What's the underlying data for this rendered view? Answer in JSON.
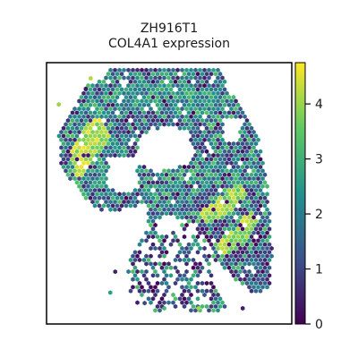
{
  "chart_data": {
    "type": "scatter",
    "title_line1": "ZH916T1",
    "title_line2": "COL4A1 expression",
    "xlabel": "",
    "ylabel": "",
    "axes_ticks": false,
    "grid": false,
    "marker": "hexagon",
    "colormap": "viridis",
    "color_stops": [
      "#440154",
      "#3b528b",
      "#21918c",
      "#5ec962",
      "#fde725"
    ],
    "colorbar": {
      "orientation": "vertical",
      "placement": "right",
      "range": [
        0,
        4.75
      ],
      "ticks": [
        {
          "value": 0,
          "label": "0"
        },
        {
          "value": 1,
          "label": "1"
        },
        {
          "value": 2,
          "label": "2"
        },
        {
          "value": 3,
          "label": "3"
        },
        {
          "value": 4,
          "label": "4"
        }
      ]
    },
    "expression_regions": [
      {
        "region": "upper-left high ridge",
        "polygon": [
          [
            0.1,
            0.32
          ],
          [
            0.16,
            0.24
          ],
          [
            0.22,
            0.2
          ],
          [
            0.26,
            0.3
          ],
          [
            0.2,
            0.36
          ],
          [
            0.14,
            0.45
          ],
          [
            0.11,
            0.42
          ]
        ],
        "level_range": [
          3.6,
          4.7
        ]
      },
      {
        "region": "right ridge upper",
        "polygon": [
          [
            0.62,
            0.58
          ],
          [
            0.7,
            0.52
          ],
          [
            0.78,
            0.46
          ],
          [
            0.82,
            0.5
          ],
          [
            0.76,
            0.56
          ],
          [
            0.66,
            0.62
          ]
        ],
        "level_range": [
          3.4,
          4.6
        ]
      },
      {
        "region": "right ridge lower",
        "polygon": [
          [
            0.68,
            0.7
          ],
          [
            0.76,
            0.64
          ],
          [
            0.84,
            0.56
          ],
          [
            0.86,
            0.62
          ],
          [
            0.8,
            0.7
          ],
          [
            0.72,
            0.74
          ]
        ],
        "level_range": [
          3.4,
          4.6
        ]
      },
      {
        "region": "upper cap",
        "polygon": [
          [
            0.22,
            0.1
          ],
          [
            0.45,
            0.06
          ],
          [
            0.7,
            0.1
          ],
          [
            0.7,
            0.18
          ],
          [
            0.45,
            0.18
          ],
          [
            0.25,
            0.2
          ]
        ],
        "level_range": [
          1.5,
          3.2
        ]
      },
      {
        "region": "lower right edge",
        "polygon": [
          [
            0.78,
            0.78
          ],
          [
            0.9,
            0.7
          ],
          [
            0.92,
            0.85
          ],
          [
            0.85,
            0.9
          ]
        ],
        "level_range": [
          0.5,
          2.2
        ]
      }
    ]
  }
}
